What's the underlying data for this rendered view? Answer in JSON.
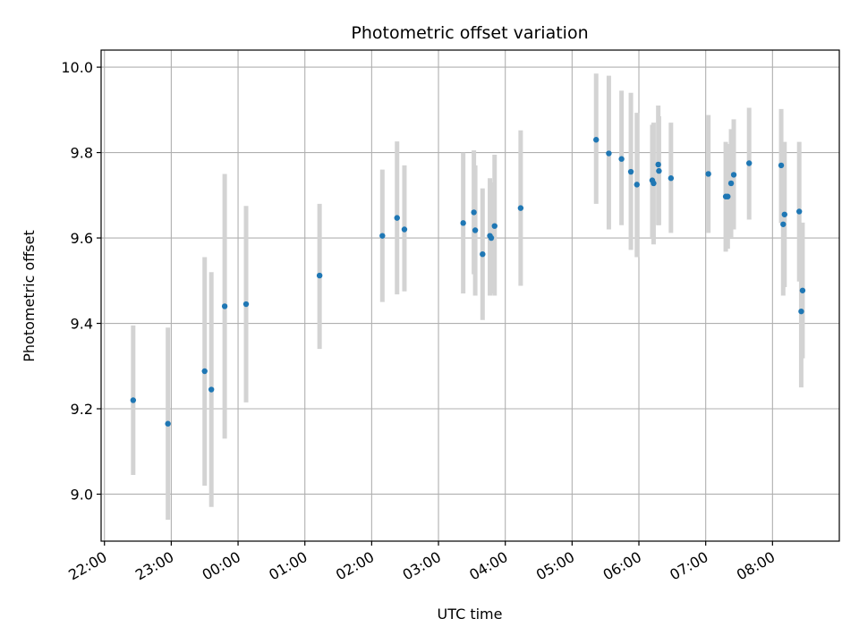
{
  "chart_data": {
    "type": "scatter",
    "title": "Photometric offset variation",
    "xlabel": "UTC time",
    "ylabel": "Photometric offset",
    "grid": true,
    "xlim_hours": [
      -2.05,
      9.0
    ],
    "ylim": [
      8.89,
      10.04
    ],
    "x_ticks": [
      {
        "h": -2,
        "label": "22:00"
      },
      {
        "h": -1,
        "label": "23:00"
      },
      {
        "h": 0,
        "label": "00:00"
      },
      {
        "h": 1,
        "label": "01:00"
      },
      {
        "h": 2,
        "label": "02:00"
      },
      {
        "h": 3,
        "label": "03:00"
      },
      {
        "h": 4,
        "label": "04:00"
      },
      {
        "h": 5,
        "label": "05:00"
      },
      {
        "h": 6,
        "label": "06:00"
      },
      {
        "h": 7,
        "label": "07:00"
      },
      {
        "h": 8,
        "label": "08:00"
      }
    ],
    "y_ticks": [
      {
        "v": 9.0,
        "label": "9.0"
      },
      {
        "v": 9.2,
        "label": "9.2"
      },
      {
        "v": 9.4,
        "label": "9.4"
      },
      {
        "v": 9.6,
        "label": "9.6"
      },
      {
        "v": 9.8,
        "label": "9.8"
      },
      {
        "v": 10.0,
        "label": "10.0"
      }
    ],
    "colors": {
      "point": "#1f77b4",
      "errorbar": "#d3d3d3",
      "grid": "#b0b0b0"
    },
    "points": [
      {
        "x": -1.57,
        "y": 9.22,
        "lo": 9.045,
        "hi": 9.395
      },
      {
        "x": -1.05,
        "y": 9.165,
        "lo": 8.94,
        "hi": 9.39
      },
      {
        "x": -0.5,
        "y": 9.288,
        "lo": 9.02,
        "hi": 9.555
      },
      {
        "x": -0.4,
        "y": 9.245,
        "lo": 8.97,
        "hi": 9.52
      },
      {
        "x": -0.2,
        "y": 9.44,
        "lo": 9.13,
        "hi": 9.75
      },
      {
        "x": 0.12,
        "y": 9.445,
        "lo": 9.215,
        "hi": 9.675
      },
      {
        "x": 1.22,
        "y": 9.512,
        "lo": 9.34,
        "hi": 9.68
      },
      {
        "x": 2.16,
        "y": 9.605,
        "lo": 9.45,
        "hi": 9.76
      },
      {
        "x": 2.38,
        "y": 9.647,
        "lo": 9.468,
        "hi": 9.826
      },
      {
        "x": 2.49,
        "y": 9.62,
        "lo": 9.475,
        "hi": 9.77
      },
      {
        "x": 3.37,
        "y": 9.635,
        "lo": 9.47,
        "hi": 9.8
      },
      {
        "x": 3.53,
        "y": 9.66,
        "lo": 9.515,
        "hi": 9.805
      },
      {
        "x": 3.55,
        "y": 9.618,
        "lo": 9.465,
        "hi": 9.77
      },
      {
        "x": 3.66,
        "y": 9.562,
        "lo": 9.408,
        "hi": 9.716
      },
      {
        "x": 3.77,
        "y": 9.605,
        "lo": 9.465,
        "hi": 9.74
      },
      {
        "x": 3.79,
        "y": 9.6,
        "lo": 9.47,
        "hi": 9.73
      },
      {
        "x": 3.84,
        "y": 9.628,
        "lo": 9.465,
        "hi": 9.795
      },
      {
        "x": 4.23,
        "y": 9.67,
        "lo": 9.488,
        "hi": 9.852
      },
      {
        "x": 5.36,
        "y": 9.83,
        "lo": 9.68,
        "hi": 9.985
      },
      {
        "x": 5.55,
        "y": 9.798,
        "lo": 9.62,
        "hi": 9.98
      },
      {
        "x": 5.74,
        "y": 9.785,
        "lo": 9.63,
        "hi": 9.945
      },
      {
        "x": 5.88,
        "y": 9.755,
        "lo": 9.572,
        "hi": 9.94
      },
      {
        "x": 5.97,
        "y": 9.725,
        "lo": 9.555,
        "hi": 9.893
      },
      {
        "x": 6.2,
        "y": 9.735,
        "lo": 9.6,
        "hi": 9.865
      },
      {
        "x": 6.22,
        "y": 9.728,
        "lo": 9.585,
        "hi": 9.87
      },
      {
        "x": 6.29,
        "y": 9.772,
        "lo": 9.63,
        "hi": 9.91
      },
      {
        "x": 6.3,
        "y": 9.757,
        "lo": 9.63,
        "hi": 9.885
      },
      {
        "x": 6.48,
        "y": 9.74,
        "lo": 9.612,
        "hi": 9.87
      },
      {
        "x": 7.04,
        "y": 9.75,
        "lo": 9.612,
        "hi": 9.888
      },
      {
        "x": 7.3,
        "y": 9.697,
        "lo": 9.568,
        "hi": 9.825
      },
      {
        "x": 7.33,
        "y": 9.697,
        "lo": 9.575,
        "hi": 9.82
      },
      {
        "x": 7.38,
        "y": 9.728,
        "lo": 9.6,
        "hi": 9.855
      },
      {
        "x": 7.42,
        "y": 9.748,
        "lo": 9.62,
        "hi": 9.878
      },
      {
        "x": 7.65,
        "y": 9.775,
        "lo": 9.643,
        "hi": 9.905
      },
      {
        "x": 8.13,
        "y": 9.77,
        "lo": 9.635,
        "hi": 9.902
      },
      {
        "x": 8.16,
        "y": 9.632,
        "lo": 9.465,
        "hi": 9.8
      },
      {
        "x": 8.18,
        "y": 9.655,
        "lo": 9.485,
        "hi": 9.825
      },
      {
        "x": 8.4,
        "y": 9.662,
        "lo": 9.498,
        "hi": 9.825
      },
      {
        "x": 8.43,
        "y": 9.428,
        "lo": 9.25,
        "hi": 9.607
      },
      {
        "x": 8.45,
        "y": 9.477,
        "lo": 9.318,
        "hi": 9.636
      }
    ]
  }
}
